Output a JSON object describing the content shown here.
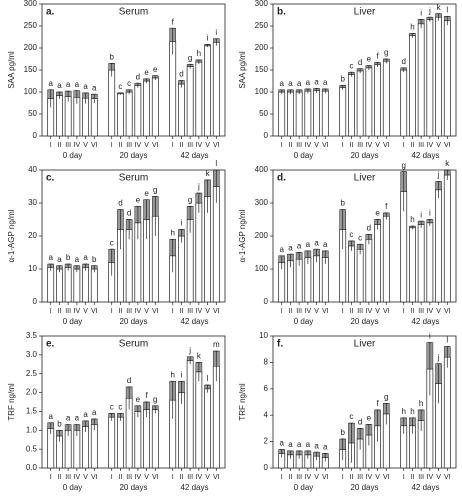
{
  "chart_data": [
    {
      "type": "bar",
      "panel": "a.",
      "title": "Serum",
      "ylabel": "SAA pg/ml",
      "categories": [
        "I",
        "II",
        "III",
        "IV",
        "V",
        "VI",
        "I",
        "II",
        "III",
        "IV",
        "V",
        "VI",
        "I",
        "II",
        "III",
        "IV",
        "V",
        "VI"
      ],
      "groups": [
        "0 day",
        "20 days",
        "42 days"
      ],
      "values": [
        85,
        92,
        90,
        88,
        86,
        85,
        150,
        96,
        100,
        115,
        125,
        132,
        215,
        118,
        158,
        168,
        205,
        213
      ],
      "errors": [
        20,
        8,
        12,
        15,
        12,
        10,
        15,
        2,
        5,
        5,
        5,
        5,
        30,
        8,
        5,
        5,
        3,
        8
      ],
      "annotations": [
        "a",
        "a",
        "a",
        "a",
        "a",
        "a",
        "b",
        "c",
        "c",
        "d",
        "e",
        "e",
        "f",
        "d",
        "g",
        "h",
        "i",
        "i"
      ],
      "ylim": [
        0,
        300
      ],
      "yticks": [
        0,
        50,
        100,
        150,
        200,
        250,
        300
      ],
      "color": "#ffffff",
      "error_color": "#999999"
    },
    {
      "type": "bar",
      "panel": "b.",
      "title": "Liver",
      "ylabel": "SAA pg/ml",
      "categories": [
        "I",
        "II",
        "III",
        "IV",
        "V",
        "VI",
        "I",
        "II",
        "III",
        "IV",
        "V",
        "VI",
        "I",
        "II",
        "III",
        "IV",
        "V",
        "VI"
      ],
      "groups": [
        "0 day",
        "20 days",
        "42 days"
      ],
      "values": [
        100,
        100,
        100,
        102,
        103,
        102,
        110,
        140,
        148,
        155,
        162,
        170,
        150,
        228,
        255,
        265,
        270,
        262
      ],
      "errors": [
        5,
        5,
        5,
        5,
        5,
        5,
        5,
        5,
        5,
        5,
        5,
        5,
        5,
        5,
        10,
        5,
        8,
        10
      ],
      "annotations": [
        "a",
        "a",
        "a",
        "a",
        "a",
        "a",
        "b",
        "c",
        "d",
        "e",
        "f",
        "g",
        "d",
        "h",
        "i",
        "j",
        "k",
        "l"
      ],
      "ylim": [
        0,
        300
      ],
      "yticks": [
        0,
        50,
        100,
        150,
        200,
        250,
        300
      ],
      "color": "#ffffff",
      "error_color": "#999999"
    },
    {
      "type": "bar",
      "panel": "c.",
      "title": "Serum",
      "ylabel": "α-1-AGP ng/ml",
      "categories": [
        "I",
        "II",
        "III",
        "IV",
        "V",
        "VI",
        "I",
        "II",
        "III",
        "IV",
        "V",
        "VI",
        "I",
        "II",
        "III",
        "IV",
        "V",
        "VI"
      ],
      "groups": [
        "0 day",
        "20 days",
        "42 days"
      ],
      "values": [
        10.5,
        10,
        10.5,
        10,
        10.5,
        10,
        12,
        22,
        22,
        24,
        25,
        26,
        14,
        20,
        25,
        30,
        32,
        35
      ],
      "errors": [
        1,
        1,
        1,
        1,
        1,
        1,
        4,
        6,
        3,
        5,
        6,
        6,
        5,
        2,
        4,
        3,
        5,
        5
      ],
      "annotations": [
        "a",
        "a",
        "b",
        "a",
        "a",
        "b",
        "c",
        "d",
        "d",
        "e",
        "e",
        "g",
        "h",
        "i",
        "g",
        "j",
        "k",
        "l"
      ],
      "ylim": [
        0,
        40
      ],
      "yticks": [
        0,
        10,
        20,
        30,
        40
      ],
      "color": "#ffffff",
      "error_color": "#999999"
    },
    {
      "type": "bar",
      "panel": "d.",
      "title": "Liver",
      "ylabel": "α-1-AGP ng/ml",
      "categories": [
        "I",
        "II",
        "III",
        "IV",
        "V",
        "VI",
        "I",
        "II",
        "III",
        "IV",
        "V",
        "VI",
        "I",
        "II",
        "III",
        "IV",
        "V",
        "VI"
      ],
      "groups": [
        "0 day",
        "20 days",
        "42 days"
      ],
      "values": [
        120,
        125,
        130,
        135,
        140,
        135,
        220,
        170,
        160,
        190,
        235,
        260,
        335,
        225,
        235,
        240,
        340,
        385
      ],
      "errors": [
        20,
        20,
        20,
        20,
        20,
        20,
        60,
        15,
        15,
        15,
        15,
        10,
        60,
        5,
        10,
        10,
        25,
        15
      ],
      "annotations": [
        "a",
        "a",
        "a",
        "a",
        "a",
        "a",
        "b",
        "c",
        "c",
        "d",
        "e",
        "f",
        "g",
        "h",
        "i",
        "i",
        "j",
        "k"
      ],
      "ylim": [
        0,
        400
      ],
      "yticks": [
        0,
        100,
        200,
        300,
        400
      ],
      "color": "#ffffff",
      "error_color": "#999999"
    },
    {
      "type": "bar",
      "panel": "e.",
      "title": "Serum",
      "ylabel": "TRF ng/ml",
      "categories": [
        "I",
        "II",
        "III",
        "IV",
        "V",
        "VI",
        "I",
        "II",
        "III",
        "IV",
        "V",
        "VI",
        "I",
        "II",
        "III",
        "IV",
        "V",
        "VI"
      ],
      "groups": [
        "0 day",
        "20 days",
        "42 days"
      ],
      "values": [
        1.05,
        0.85,
        1.0,
        1.0,
        1.1,
        1.15,
        1.35,
        1.35,
        1.85,
        1.5,
        1.55,
        1.55,
        1.8,
        2.0,
        2.85,
        2.55,
        2.1,
        2.7
      ],
      "errors": [
        0.15,
        0.15,
        0.15,
        0.15,
        0.15,
        0.15,
        0.1,
        0.1,
        0.3,
        0.15,
        0.2,
        0.1,
        0.5,
        0.3,
        0.1,
        0.25,
        0.1,
        0.4
      ],
      "annotations": [
        "a",
        "b",
        "a",
        "a",
        "a",
        "a",
        "c",
        "c",
        "d",
        "e",
        "f",
        "g",
        "h",
        "i",
        "j",
        "k",
        "l",
        "m"
      ],
      "ylim": [
        0,
        3.5
      ],
      "yticks": [
        {
          "value": 0,
          "label": "0.0"
        },
        0.5,
        {
          "value": 1,
          "label": "1.0"
        },
        1.5,
        {
          "value": 2,
          "label": "2.0"
        },
        2.5,
        {
          "value": 3,
          "label": "3.0"
        },
        3.5
      ],
      "color": "#ffffff",
      "error_color": "#999999"
    },
    {
      "type": "bar",
      "panel": "f.",
      "title": "Liver",
      "ylabel": "TRF ng/ml",
      "categories": [
        "I",
        "II",
        "III",
        "IV",
        "V",
        "VI",
        "I",
        "II",
        "III",
        "IV",
        "V",
        "VI",
        "I",
        "II",
        "III",
        "IV",
        "V",
        "VI"
      ],
      "groups": [
        "0 day",
        "20 days",
        "42 days"
      ],
      "values": [
        1.1,
        1.0,
        1.0,
        1.0,
        0.9,
        0.8,
        1.4,
        1.9,
        2.2,
        2.5,
        3.2,
        4.1,
        3.2,
        3.2,
        3.6,
        7.5,
        6.4,
        8.4
      ],
      "errors": [
        0.3,
        0.3,
        0.3,
        0.3,
        0.3,
        0.3,
        0.8,
        1.5,
        0.8,
        0.8,
        1.2,
        0.8,
        0.6,
        0.6,
        0.8,
        2.0,
        1.5,
        0.8
      ],
      "annotations": [
        "a",
        "a",
        "a",
        "a",
        "a",
        "a",
        "b",
        "c",
        "d",
        "e",
        "f",
        "g",
        "h",
        "h",
        "h",
        "i",
        "j",
        "l"
      ],
      "ylim": [
        0,
        10
      ],
      "yticks": [
        0,
        2,
        4,
        6,
        8,
        10
      ],
      "color": "#ffffff",
      "error_color": "#999999"
    }
  ]
}
